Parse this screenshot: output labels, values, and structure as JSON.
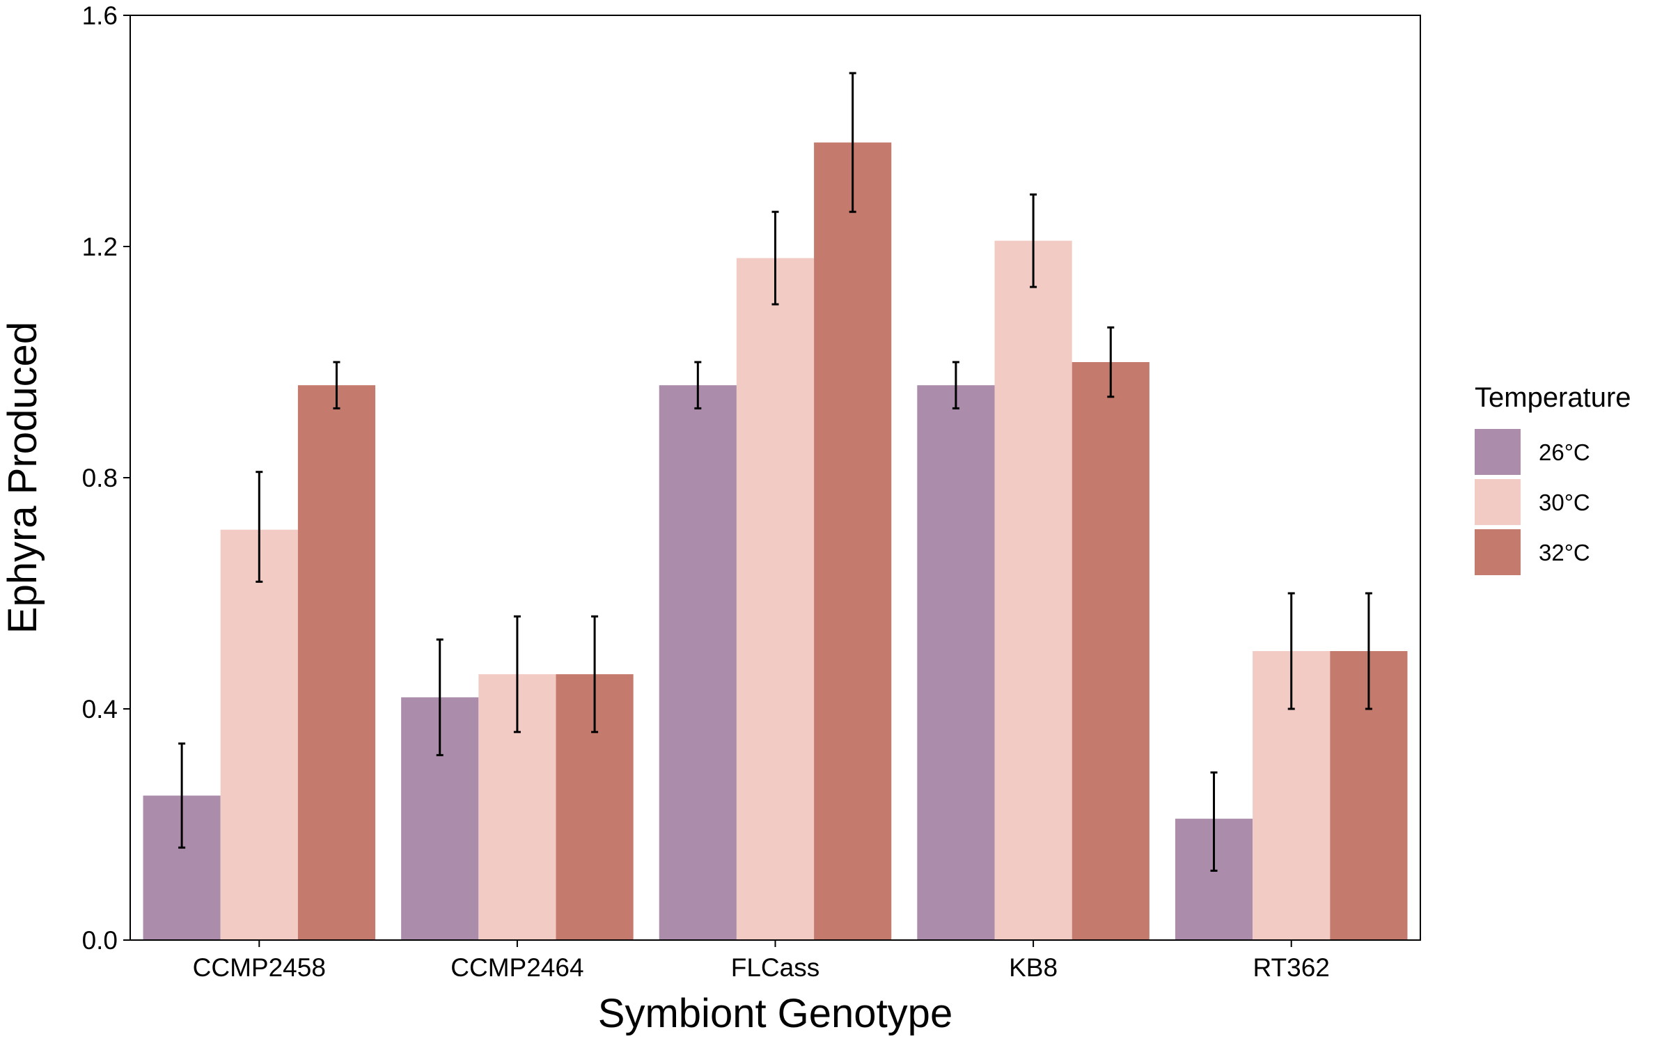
{
  "chart_data": {
    "type": "bar",
    "title": "",
    "xlabel": "Symbiont Genotype",
    "ylabel": "Ephyra Produced",
    "ylim": [
      0,
      1.6
    ],
    "yticks": [
      "0.0",
      "0.4",
      "0.8",
      "1.2",
      "1.6"
    ],
    "categories": [
      "CCMP2458",
      "CCMP2464",
      "FLCass",
      "KB8",
      "RT362"
    ],
    "legend": {
      "title": "Temperature",
      "position": "right"
    },
    "grid": false,
    "series": [
      {
        "name": "26°C",
        "color": "#ab8dab",
        "values": [
          0.25,
          0.42,
          0.96,
          0.96,
          0.21
        ],
        "err_low": [
          0.16,
          0.32,
          0.92,
          0.92,
          0.12
        ],
        "err_high": [
          0.34,
          0.52,
          1.0,
          1.0,
          0.29
        ]
      },
      {
        "name": "30°C",
        "color": "#f2cbc5",
        "values": [
          0.71,
          0.46,
          1.18,
          1.21,
          0.5
        ],
        "err_low": [
          0.62,
          0.36,
          1.1,
          1.13,
          0.4
        ],
        "err_high": [
          0.81,
          0.56,
          1.26,
          1.29,
          0.6
        ]
      },
      {
        "name": "32°C",
        "color": "#c47a6c",
        "values": [
          0.96,
          0.46,
          1.38,
          1.0,
          0.5
        ],
        "err_low": [
          0.92,
          0.36,
          1.26,
          0.94,
          0.4
        ],
        "err_high": [
          1.0,
          0.56,
          1.5,
          1.06,
          0.6
        ]
      }
    ]
  }
}
